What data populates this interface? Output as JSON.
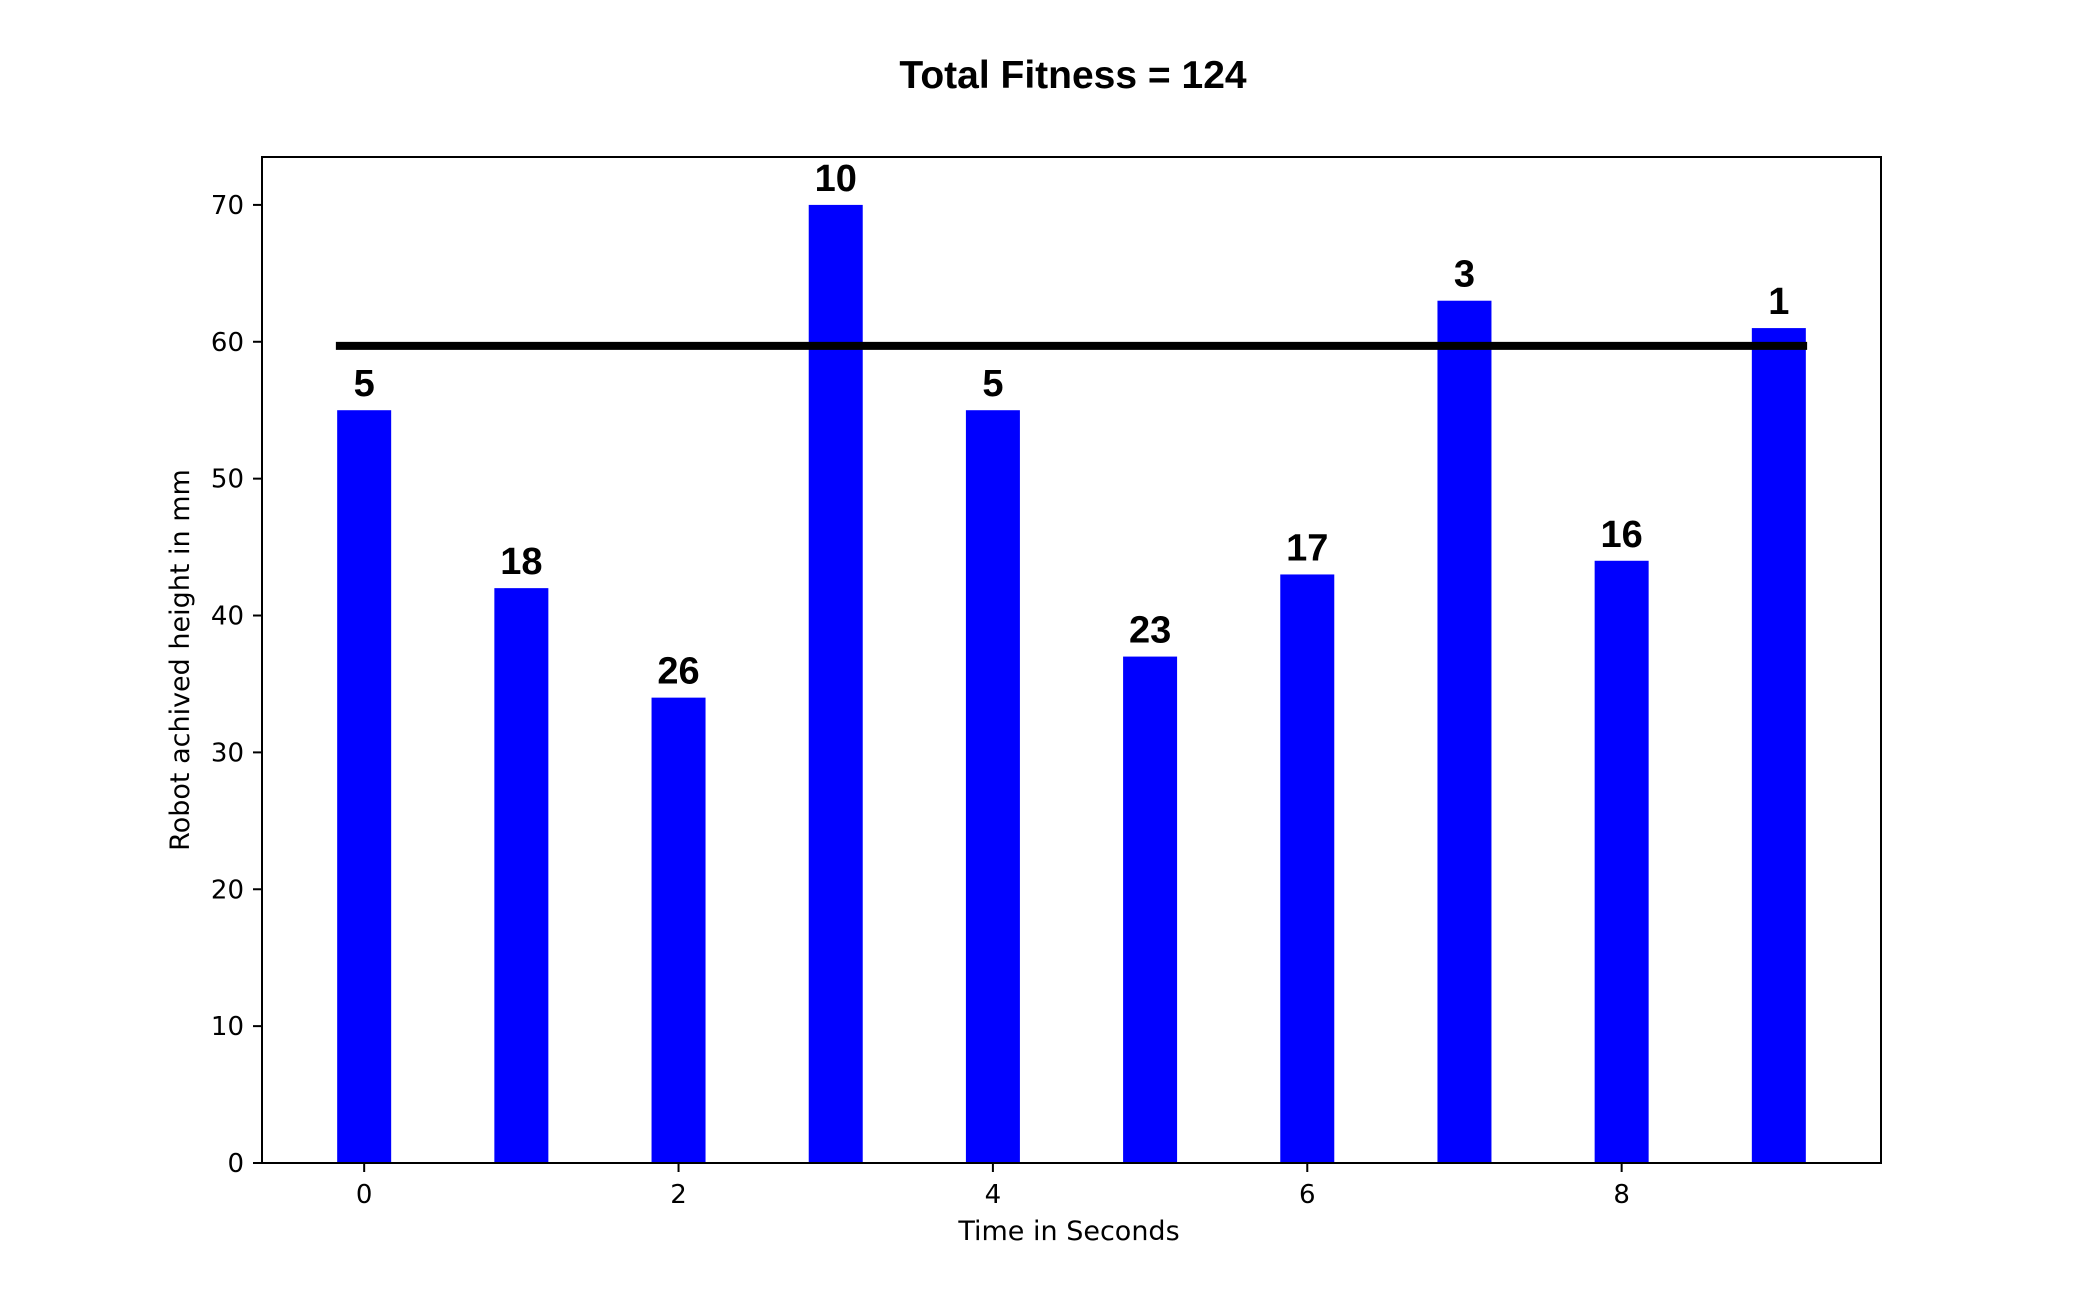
{
  "chart_data": {
    "type": "bar",
    "title": "Total Fitness = 124",
    "xlabel": "Time in Seconds",
    "ylabel": "Robot achived height in mm",
    "x": [
      0,
      1,
      2,
      3,
      4,
      5,
      6,
      7,
      8,
      9
    ],
    "values": [
      55,
      42,
      34,
      70,
      55,
      37,
      43,
      63,
      44,
      61
    ],
    "bar_labels": [
      "5",
      "18",
      "26",
      "10",
      "5",
      "23",
      "17",
      "3",
      "16",
      "1"
    ],
    "bar_color": "#0000ff",
    "xlim": [
      -0.65,
      9.65
    ],
    "ylim": [
      0,
      73.5
    ],
    "xticks": [
      0,
      2,
      4,
      6,
      8
    ],
    "yticks": [
      0,
      10,
      20,
      30,
      40,
      50,
      60,
      70
    ],
    "reference_line": {
      "y": 59.7,
      "x_start": -0.18,
      "x_end": 9.18,
      "color": "#000000"
    },
    "grid": false,
    "legend": "none"
  }
}
